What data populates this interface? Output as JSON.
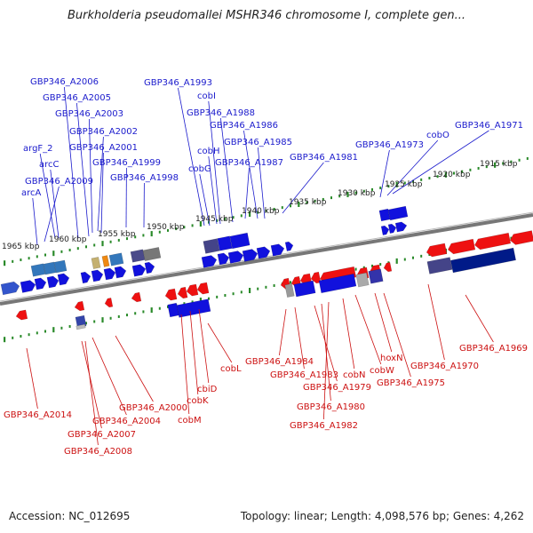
{
  "title": "Burkholderia pseudomallei MSHR346 chromosome I, complete gen...",
  "footer": {
    "accession": "Accession: NC_012695",
    "summary": "Topology: linear; Length: 4,098,576 bp; Genes: 4,262"
  },
  "scale_labels": [
    "1915 kbp",
    "1920 kbp",
    "1925 kbp",
    "1930 kbp",
    "1935 kbp",
    "1940 kbp",
    "1945 kbp",
    "1950 kbp",
    "1955 kbp",
    "1960 kbp",
    "1965 kbp"
  ],
  "top_labels": [
    "GBP346_A2006",
    "GBP346_A2005",
    "GBP346_A2003",
    "GBP346_A2002",
    "argF_2",
    "GBP346_A2001",
    "arcC",
    "GBP346_A1999",
    "GBP346_A2009",
    "arcA",
    "GBP346_A1998",
    "GBP346_A1993",
    "cobI",
    "GBP346_A1988",
    "GBP346_A1986",
    "cobH",
    "GBP346_A1985",
    "cobG",
    "GBP346_A1987",
    "GBP346_A1981",
    "GBP346_A1973",
    "cobO",
    "GBP346_A1971"
  ],
  "bottom_labels": [
    "GBP346_A2014",
    "GBP346_A2007",
    "GBP346_A2008",
    "GBP346_A2004",
    "GBP346_A2000",
    "cobM",
    "cobK",
    "cbiD",
    "cobL",
    "GBP346_A1984",
    "GBP346_A1983",
    "GBP346_A1979",
    "GBP346_A1980",
    "GBP346_A1982",
    "cobN",
    "cobW",
    "hoxN",
    "GBP346_A1975",
    "GBP346_A1970",
    "GBP346_A1969"
  ],
  "colors": {
    "forward": "#1111dd",
    "reverse": "#ee1111",
    "backbone": "#777777",
    "ticks": "#2a8a2a",
    "label_top": "#1a1acc",
    "label_bottom": "#cc1111"
  }
}
